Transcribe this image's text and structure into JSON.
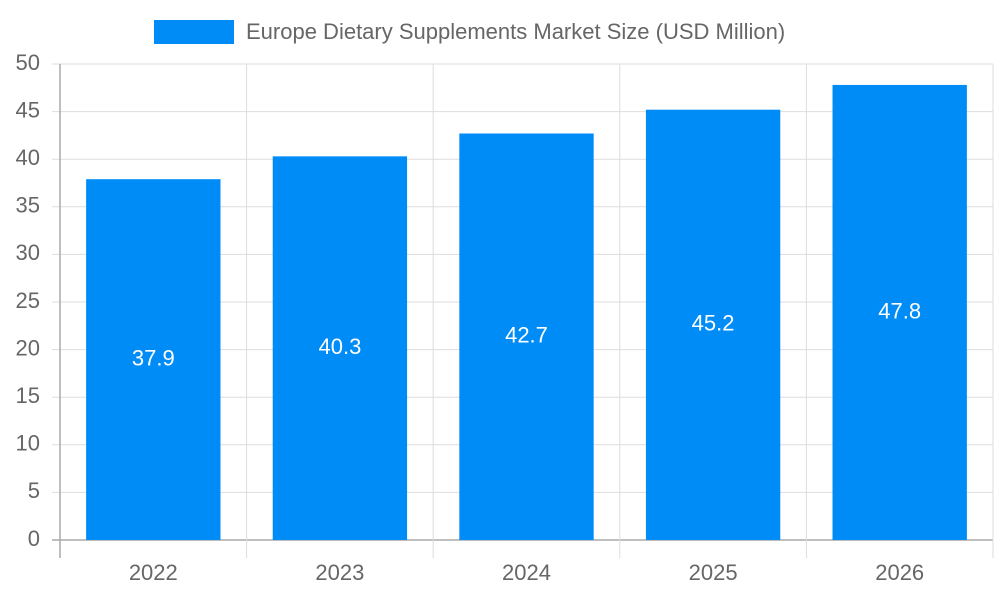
{
  "chart_data": {
    "type": "bar",
    "categories": [
      "2022",
      "2023",
      "2024",
      "2025",
      "2026"
    ],
    "series": [
      {
        "name": "Europe Dietary Supplements Market Size (USD Million)",
        "color": "#008cf7",
        "values": [
          37.9,
          40.3,
          42.7,
          45.2,
          47.8
        ]
      }
    ],
    "ylim": [
      0,
      50
    ],
    "yticks": [
      0,
      5,
      10,
      15,
      20,
      25,
      30,
      35,
      40,
      45,
      50
    ],
    "grid": true,
    "legend": "top"
  }
}
